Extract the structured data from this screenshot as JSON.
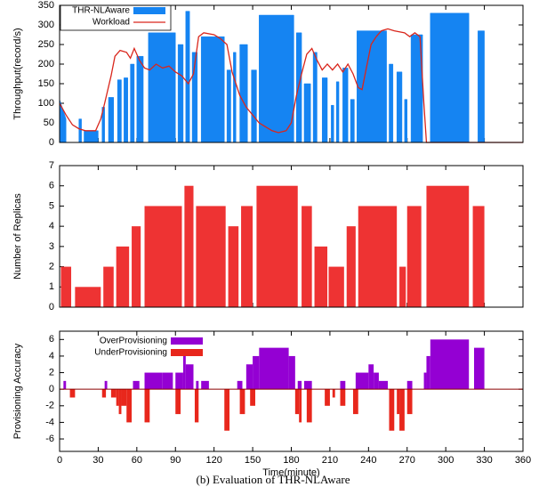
{
  "chart_data": [
    {
      "type": "area",
      "ylabel": "Throughput(record/s)",
      "xlim": [
        0,
        360
      ],
      "xticks": [
        0,
        30,
        60,
        90,
        120,
        150,
        180,
        210,
        240,
        270,
        300,
        330,
        360
      ],
      "xticklabels": false,
      "ylim": [
        0,
        350
      ],
      "yticks": [
        0,
        50,
        100,
        150,
        200,
        250,
        300,
        350
      ],
      "legend": "top-left",
      "series": [
        {
          "name": "THR-NLAware",
          "color": "#1584f2",
          "type": "area",
          "x": [
            0,
            5,
            5,
            15,
            17,
            17,
            19,
            30,
            30,
            33,
            35,
            35,
            38,
            42,
            42,
            45,
            48,
            48,
            50,
            53,
            53,
            55,
            58,
            58,
            60,
            65,
            65,
            69,
            90,
            90,
            92,
            96,
            96,
            98,
            101,
            101,
            103,
            107,
            107,
            110,
            128,
            128,
            130,
            133,
            133,
            135,
            137,
            137,
            140,
            146,
            146,
            149,
            153,
            153,
            155,
            182,
            182,
            184,
            188,
            188,
            190,
            195,
            195,
            197,
            200,
            200,
            204,
            208,
            208,
            211,
            213,
            213,
            215,
            217,
            217,
            220,
            224,
            224,
            226,
            229,
            229,
            231,
            254,
            254,
            256,
            259,
            259,
            262,
            266,
            266,
            268,
            270,
            270,
            273,
            282,
            282,
            288,
            318,
            318,
            325,
            330
          ],
          "values": [
            110,
            60,
            null,
            60,
            60,
            null,
            30,
            30,
            null,
            90,
            90,
            null,
            115,
            115,
            null,
            160,
            160,
            null,
            165,
            165,
            null,
            200,
            200,
            null,
            220,
            220,
            null,
            280,
            280,
            null,
            250,
            250,
            null,
            335,
            335,
            null,
            230,
            230,
            null,
            270,
            270,
            null,
            185,
            185,
            null,
            230,
            230,
            null,
            250,
            250,
            null,
            185,
            185,
            null,
            325,
            325,
            null,
            280,
            280,
            null,
            150,
            150,
            null,
            230,
            230,
            null,
            165,
            165,
            null,
            95,
            95,
            null,
            155,
            155,
            null,
            190,
            190,
            null,
            110,
            110,
            null,
            285,
            285,
            null,
            200,
            200,
            null,
            180,
            180,
            null,
            110,
            110,
            null,
            275,
            275,
            null,
            330,
            330,
            null,
            285,
            285
          ]
        },
        {
          "name": "Workload",
          "color": "#d9261c",
          "type": "line",
          "x": [
            0,
            5,
            10,
            15,
            20,
            28,
            32,
            35,
            40,
            43,
            47,
            52,
            55,
            58,
            62,
            66,
            70,
            75,
            80,
            85,
            90,
            95,
            100,
            104,
            108,
            112,
            120,
            125,
            130,
            134,
            140,
            145,
            150,
            155,
            160,
            165,
            170,
            176,
            180,
            184,
            188,
            192,
            196,
            200,
            204,
            208,
            212,
            216,
            220,
            224,
            228,
            232,
            235,
            238,
            242,
            246,
            250,
            255,
            260,
            268,
            272,
            276,
            280,
            283,
            285,
            360
          ],
          "values": [
            100,
            70,
            45,
            35,
            30,
            30,
            60,
            100,
            170,
            220,
            235,
            230,
            215,
            240,
            210,
            190,
            185,
            200,
            190,
            195,
            180,
            170,
            150,
            175,
            270,
            280,
            275,
            265,
            250,
            180,
            120,
            90,
            70,
            50,
            40,
            30,
            25,
            30,
            50,
            120,
            175,
            225,
            240,
            210,
            185,
            200,
            185,
            200,
            180,
            200,
            175,
            140,
            135,
            185,
            250,
            270,
            285,
            290,
            285,
            280,
            270,
            280,
            270,
            100,
            0,
            0
          ]
        }
      ]
    },
    {
      "type": "bar",
      "ylabel": "Number of Replicas",
      "xlim": [
        0,
        360
      ],
      "xticks": [
        0,
        30,
        60,
        90,
        120,
        150,
        180,
        210,
        240,
        270,
        300,
        330,
        360
      ],
      "xticklabels": false,
      "ylim": [
        0,
        7
      ],
      "yticks": [
        0,
        1,
        2,
        3,
        4,
        5,
        6,
        7
      ],
      "series": [
        {
          "color": "#ee3333",
          "starts": [
            1,
            12,
            34,
            44,
            56,
            66,
            97,
            106,
            131,
            141,
            153,
            188,
            198,
            209,
            223,
            232,
            264,
            270,
            285,
            321
          ],
          "ends": [
            9,
            32,
            42,
            54,
            63,
            95,
            104,
            129,
            139,
            150,
            185,
            196,
            208,
            221,
            230,
            262,
            269,
            281,
            318,
            330
          ],
          "values": [
            2,
            1,
            2,
            3,
            4,
            5,
            6,
            5,
            4,
            5,
            6,
            5,
            3,
            2,
            4,
            5,
            2,
            5,
            6,
            5
          ]
        }
      ]
    },
    {
      "type": "bar",
      "ylabel": "Provisioning Accuracy",
      "xlabel": "Time(minute)",
      "xlim": [
        0,
        360
      ],
      "xticks": [
        0,
        30,
        60,
        90,
        120,
        150,
        180,
        210,
        240,
        270,
        300,
        330,
        360
      ],
      "xticklabels": true,
      "ylim": [
        -7.5,
        7
      ],
      "yticks": [
        -6,
        -4,
        -2,
        0,
        2,
        4,
        6
      ],
      "legend": "top-left",
      "series": [
        {
          "name": "OverProvisioning",
          "color": "#9400d3",
          "starts": [
            3,
            35,
            57,
            66,
            80,
            90,
            96,
            98,
            106,
            110,
            138,
            145,
            150,
            155,
            178,
            185,
            190,
            218,
            230,
            240,
            244,
            248,
            270,
            283,
            285,
            288,
            322
          ],
          "ends": [
            5,
            37,
            62,
            80,
            88,
            96,
            98,
            104,
            108,
            116,
            142,
            150,
            155,
            178,
            183,
            188,
            196,
            222,
            240,
            244,
            248,
            255,
            274,
            285,
            288,
            318,
            330
          ],
          "values": [
            1,
            1,
            1,
            2,
            2,
            2,
            4,
            3,
            1,
            1,
            1,
            3,
            4,
            5,
            4,
            1,
            1,
            1,
            2,
            3,
            2,
            1,
            1,
            2,
            4,
            6,
            5
          ]
        },
        {
          "name": "UnderProvisioning",
          "color": "#e8271c",
          "starts": [
            8,
            33,
            40,
            44,
            46,
            48,
            52,
            66,
            90,
            105,
            128,
            140,
            148,
            183,
            186,
            192,
            206,
            212,
            218,
            228,
            256,
            262,
            264,
            270
          ],
          "ends": [
            12,
            36,
            44,
            46,
            48,
            52,
            56,
            70,
            94,
            108,
            132,
            144,
            152,
            186,
            188,
            196,
            210,
            214,
            222,
            232,
            260,
            264,
            268,
            274
          ],
          "values": [
            -1,
            -1,
            -1,
            -2,
            -3,
            -2,
            -4,
            -4,
            -3,
            -4,
            -5,
            -3,
            -2,
            -3,
            -4,
            -4,
            -2,
            -1,
            -2,
            -3,
            -5,
            -3,
            -5,
            -3
          ]
        }
      ]
    }
  ],
  "caption": "(b) Evaluation of THR-NLAware"
}
